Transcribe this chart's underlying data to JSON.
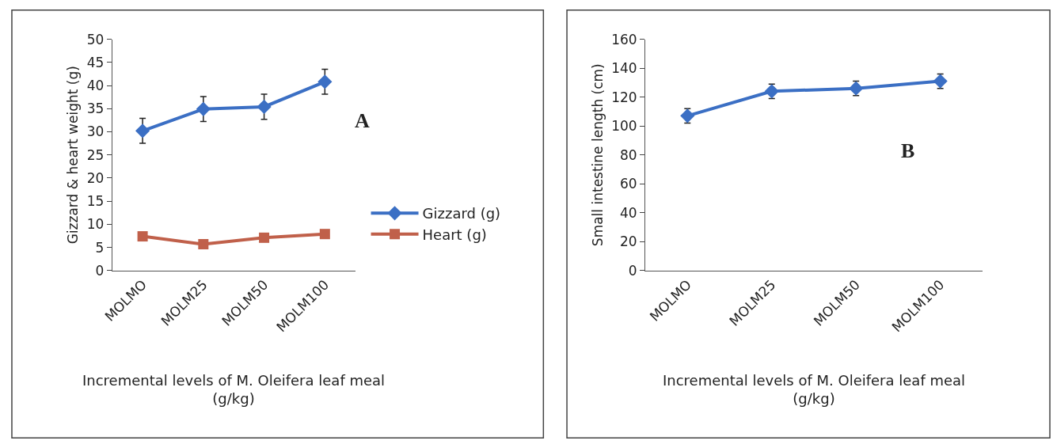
{
  "chart_data": [
    {
      "type": "line",
      "ylabel": "Gizzard & heart weight (g)",
      "xlabel": "Incremental levels of M. Oleifera leaf meal (g/kg)",
      "categories": [
        "MOLMO",
        "MOLM25",
        "MOLM50",
        "MOLM100"
      ],
      "ylim": [
        0,
        50
      ],
      "yticks": [
        0,
        5,
        10,
        15,
        20,
        25,
        30,
        35,
        40,
        45,
        50
      ],
      "legend": "right",
      "annotations": [
        "A"
      ],
      "series": [
        {
          "name": "Gizzard (g)",
          "color": "#3b6fc4",
          "marker": "diamond",
          "values": [
            30.2,
            34.9,
            35.4,
            40.8
          ],
          "errors": [
            2.7,
            2.7,
            2.7,
            2.7
          ]
        },
        {
          "name": "Heart (g)",
          "color": "#c0604a",
          "marker": "square",
          "values": [
            7.4,
            5.7,
            7.1,
            7.9
          ]
        }
      ]
    },
    {
      "type": "line",
      "ylabel": "Small intestine length (cm)",
      "xlabel": "Incremental levels of M. Oleifera leaf meal (g/kg)",
      "categories": [
        "MOLMO",
        "MOLM25",
        "MOLM50",
        "MOLM100"
      ],
      "ylim": [
        0,
        160
      ],
      "yticks": [
        0,
        20,
        40,
        60,
        80,
        100,
        120,
        140,
        160
      ],
      "annotations": [
        "B"
      ],
      "series": [
        {
          "color": "#3b6fc4",
          "marker": "diamond",
          "values": [
            107,
            124,
            126,
            131
          ],
          "errors": [
            5,
            5,
            5,
            5
          ]
        }
      ]
    }
  ]
}
